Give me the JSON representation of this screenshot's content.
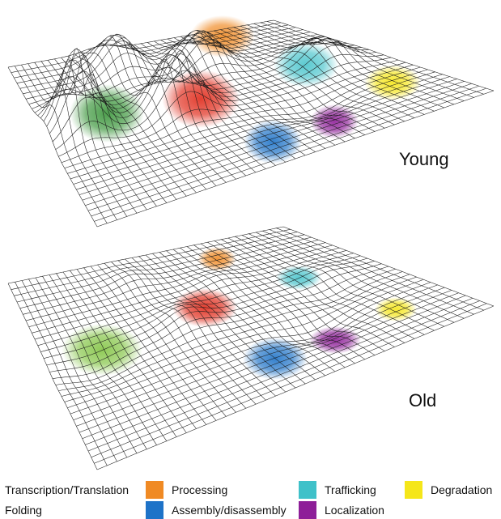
{
  "panels": [
    {
      "label": "Young"
    },
    {
      "label": "Old"
    }
  ],
  "legend": [
    {
      "label": "Transcription/Translation",
      "color": "#e8e8e8",
      "icon": "none"
    },
    {
      "label": "Processing",
      "color": "#f08a24"
    },
    {
      "label": "Trafficking",
      "color": "#3fc1c9"
    },
    {
      "label": "Degradation",
      "color": "#f5e61a"
    },
    {
      "label": "Folding",
      "color": "#e8e8e8",
      "icon": "none"
    },
    {
      "label": "Assembly/disassembly",
      "color": "#1e73c8"
    },
    {
      "label": "Localization",
      "color": "#8e1e98"
    }
  ],
  "peak_colors": {
    "green": "#2f8f2f",
    "orange": "#f08a24",
    "red": "#e02a1a",
    "cyan": "#3fc1c9",
    "yellow": "#f5e61a",
    "blue": "#1e73c8",
    "purple": "#8e1e98",
    "lime": "#7cc13a"
  }
}
